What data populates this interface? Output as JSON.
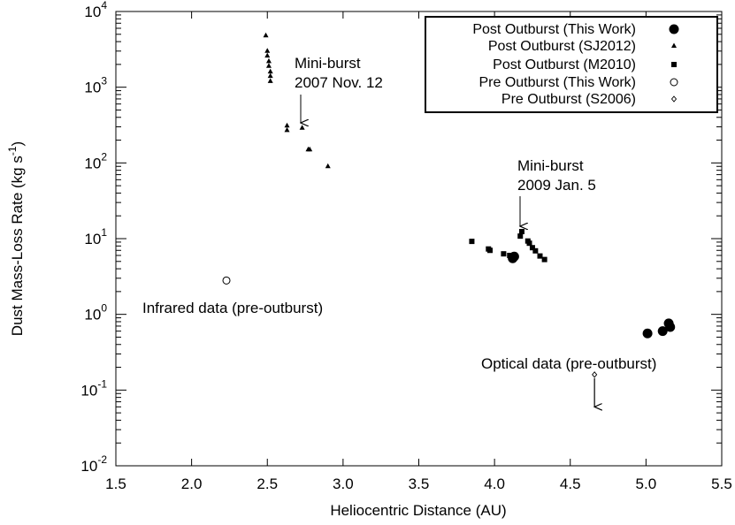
{
  "chart_data": {
    "type": "scatter",
    "xlabel": "Heliocentric Distance (AU)",
    "ylabel": "Dust Mass-Loss Rate (kg s",
    "ylabel_sup": "-1",
    "ylabel_end": ")",
    "xlim": [
      1.5,
      5.5
    ],
    "ylim": [
      0.01,
      10000
    ],
    "yscale": "log",
    "grid": false,
    "legend_position": "top-right",
    "x_ticks": [
      1.5,
      2.0,
      2.5,
      3.0,
      3.5,
      4.0,
      4.5,
      5.0,
      5.5
    ],
    "x_tick_labels": [
      "1.5",
      "2.0",
      "2.5",
      "3.0",
      "3.5",
      "4.0",
      "4.5",
      "5.0",
      "5.5"
    ],
    "y_ticks": [
      0.01,
      0.1,
      1,
      10,
      100,
      1000,
      10000
    ],
    "y_tick_labels": [
      {
        "base": "10",
        "exp": "-2"
      },
      {
        "base": "10",
        "exp": "-1"
      },
      {
        "base": "10",
        "exp": "0"
      },
      {
        "base": "10",
        "exp": "1"
      },
      {
        "base": "10",
        "exp": "2"
      },
      {
        "base": "10",
        "exp": "3"
      },
      {
        "base": "10",
        "exp": "4"
      }
    ],
    "series": [
      {
        "name": "Post Outburst (This Work)",
        "marker": "filled-circle",
        "points": [
          [
            4.12,
            5.5
          ],
          [
            4.13,
            5.8
          ],
          [
            5.01,
            0.56
          ],
          [
            5.11,
            0.6
          ],
          [
            5.15,
            0.76
          ],
          [
            5.16,
            0.68
          ]
        ]
      },
      {
        "name": "Post Outburst (SJ2012)",
        "marker": "filled-triangle",
        "points": [
          [
            2.49,
            4800
          ],
          [
            2.5,
            3000
          ],
          [
            2.5,
            2600
          ],
          [
            2.51,
            2200
          ],
          [
            2.51,
            1900
          ],
          [
            2.52,
            1600
          ],
          [
            2.52,
            1400
          ],
          [
            2.52,
            1200
          ],
          [
            2.63,
            310
          ],
          [
            2.63,
            270
          ],
          [
            2.73,
            290
          ],
          [
            2.77,
            150
          ],
          [
            2.78,
            150
          ],
          [
            2.9,
            90
          ]
        ]
      },
      {
        "name": "Post Outburst (M2010)",
        "marker": "filled-square",
        "points": [
          [
            3.85,
            9.2
          ],
          [
            3.96,
            7.3
          ],
          [
            3.97,
            7.0
          ],
          [
            4.06,
            6.3
          ],
          [
            4.1,
            6.0
          ],
          [
            4.17,
            10.8
          ],
          [
            4.18,
            12.4
          ],
          [
            4.22,
            9.3
          ],
          [
            4.23,
            8.7
          ],
          [
            4.25,
            7.6
          ],
          [
            4.27,
            6.9
          ],
          [
            4.3,
            5.9
          ],
          [
            4.33,
            5.3
          ]
        ]
      },
      {
        "name": "Pre Outburst (This Work)",
        "marker": "open-circle",
        "points": [
          [
            2.23,
            2.8
          ]
        ]
      },
      {
        "name": "Pre Outburst (S2006)",
        "marker": "open-diamond",
        "points": [
          [
            4.66,
            0.16
          ]
        ]
      }
    ],
    "annotations": [
      {
        "id": "mini-2007",
        "lines": [
          "Mini-burst",
          "2007 Nov. 12"
        ],
        "x": 2.72,
        "y": 300
      },
      {
        "id": "mini-2009",
        "lines": [
          "Mini-burst",
          "2009 Jan. 5"
        ],
        "x": 4.18,
        "y": 14
      },
      {
        "id": "infrared",
        "lines": [
          "Infrared data (pre-outburst)"
        ]
      },
      {
        "id": "optical",
        "lines": [
          "Optical data (pre-outburst)"
        ]
      }
    ],
    "upper_limit_arrow": {
      "x": 4.66,
      "y_from": 0.16,
      "y_to": 0.06
    }
  }
}
